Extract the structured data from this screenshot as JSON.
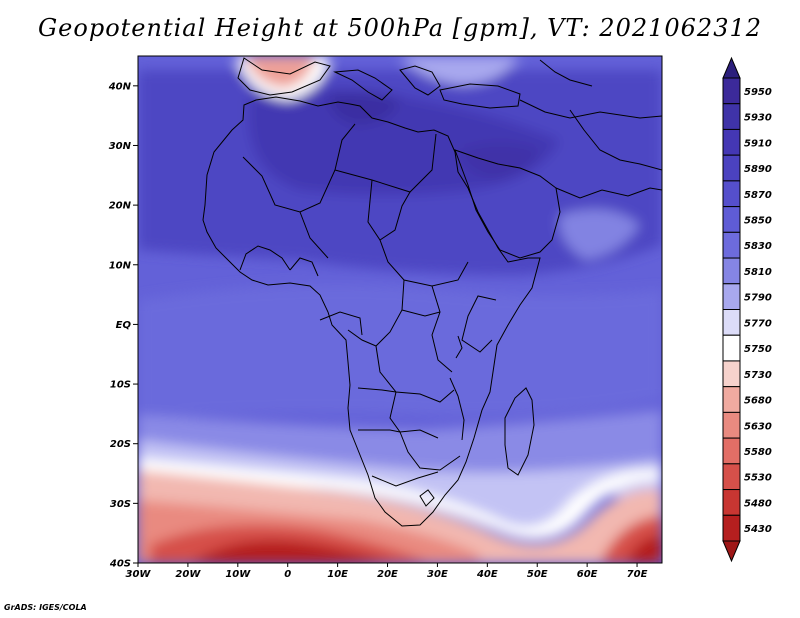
{
  "title": "Geopotential Height at 500hPa [gpm], VT: 2021062312",
  "credit": "GrADS: IGES/COLA",
  "map": {
    "lon_range": [
      -30,
      75
    ],
    "lat_range": [
      -40,
      45
    ],
    "lat_ticks": [
      {
        "value": 40,
        "label": "40N"
      },
      {
        "value": 30,
        "label": "30N"
      },
      {
        "value": 20,
        "label": "20N"
      },
      {
        "value": 10,
        "label": "10N"
      },
      {
        "value": 0,
        "label": "EQ"
      },
      {
        "value": -10,
        "label": "10S"
      },
      {
        "value": -20,
        "label": "20S"
      },
      {
        "value": -30,
        "label": "30S"
      },
      {
        "value": -40,
        "label": "40S"
      }
    ],
    "lon_ticks": [
      {
        "value": -30,
        "label": "30W"
      },
      {
        "value": -20,
        "label": "20W"
      },
      {
        "value": -10,
        "label": "10W"
      },
      {
        "value": 0,
        "label": "0"
      },
      {
        "value": 10,
        "label": "10E"
      },
      {
        "value": 20,
        "label": "20E"
      },
      {
        "value": 30,
        "label": "30E"
      },
      {
        "value": 40,
        "label": "40E"
      },
      {
        "value": 50,
        "label": "50E"
      },
      {
        "value": 60,
        "label": "60E"
      },
      {
        "value": 70,
        "label": "70E"
      }
    ]
  },
  "colorbar": {
    "levels": [
      {
        "label": "5950",
        "color": "#3c2a9a"
      },
      {
        "label": "5930",
        "color": "#3f33a8"
      },
      {
        "label": "5910",
        "color": "#4437b4"
      },
      {
        "label": "5890",
        "color": "#4b42c0"
      },
      {
        "label": "5870",
        "color": "#554fcc"
      },
      {
        "label": "5850",
        "color": "#5f5cd6"
      },
      {
        "label": "5830",
        "color": "#6d6bdd"
      },
      {
        "label": "5810",
        "color": "#8585e4"
      },
      {
        "label": "5790",
        "color": "#a8a8ee"
      },
      {
        "label": "5770",
        "color": "#dcdcf8"
      },
      {
        "label": "5750",
        "color": "#ffffff"
      },
      {
        "label": "5730",
        "color": "#f6d2cc"
      },
      {
        "label": "5680",
        "color": "#f0aaa0"
      },
      {
        "label": "5630",
        "color": "#e98a80"
      },
      {
        "label": "5580",
        "color": "#e26e66"
      },
      {
        "label": "5530",
        "color": "#d6504a"
      },
      {
        "label": "5480",
        "color": "#c83632"
      },
      {
        "label": "5430",
        "color": "#b51f1f"
      }
    ],
    "arrow_top_color": "#2c1f7c",
    "arrow_bottom_color": "#9e1717"
  }
}
